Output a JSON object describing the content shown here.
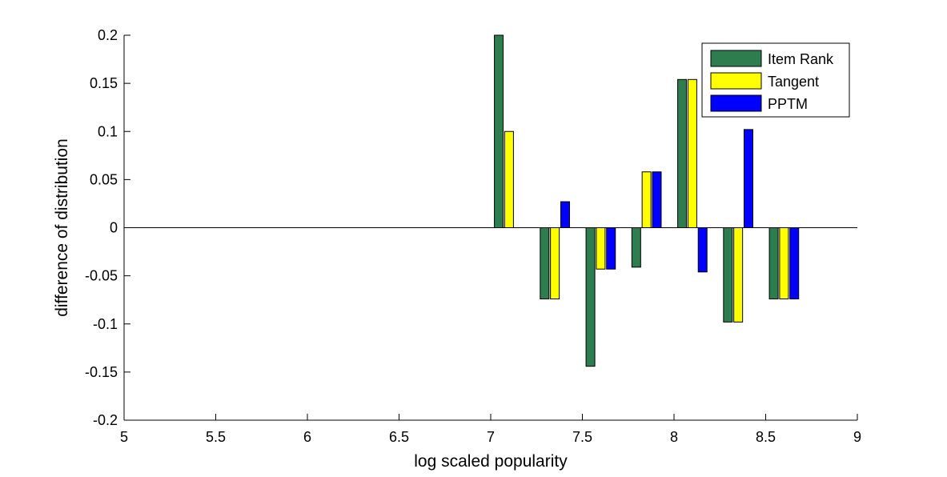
{
  "chart_data": {
    "type": "bar",
    "title": "",
    "xlabel": "log scaled popularity",
    "ylabel": "difference of distribution",
    "xlim": [
      5,
      9
    ],
    "ylim": [
      -0.2,
      0.2
    ],
    "grid": false,
    "legend_position": "top-right",
    "x_ticks": [
      5,
      5.5,
      6,
      6.5,
      7,
      7.5,
      8,
      8.5,
      9
    ],
    "x_tick_labels": [
      "5",
      "5.5",
      "6",
      "6.5",
      "7",
      "7.5",
      "8",
      "8.5",
      "9"
    ],
    "y_ticks": [
      -0.2,
      -0.15,
      -0.1,
      -0.05,
      0,
      0.05,
      0.1,
      0.15,
      0.2
    ],
    "y_tick_labels": [
      "-0.2",
      "-0.15",
      "-0.1",
      "-0.05",
      "0",
      "0.05",
      "0.1",
      "0.15",
      "0.2"
    ],
    "categories": [
      7.1,
      7.35,
      7.6,
      7.85,
      8.1,
      8.35,
      8.6
    ],
    "series": [
      {
        "name": "Item Rank",
        "color": "#2e7d4f",
        "values": [
          0.2,
          -0.074,
          -0.144,
          -0.041,
          0.154,
          -0.098,
          -0.074
        ]
      },
      {
        "name": "Tangent",
        "color": "#ffff00",
        "values": [
          0.1,
          -0.074,
          -0.043,
          0.058,
          0.154,
          -0.098,
          -0.074
        ]
      },
      {
        "name": "PPTM",
        "color": "#0000ff",
        "values": [
          0.0,
          0.027,
          -0.043,
          0.058,
          -0.046,
          0.102,
          -0.074
        ]
      }
    ]
  }
}
